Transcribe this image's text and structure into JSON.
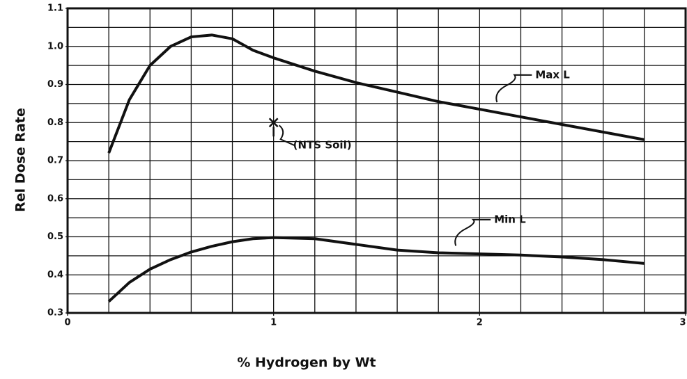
{
  "chart_data": {
    "type": "line",
    "xlabel": "% Hydrogen by Wt",
    "ylabel": "Rel Dose Rate",
    "xlim": [
      0,
      3
    ],
    "ylim": [
      0.3,
      1.1
    ],
    "xticks": [
      0,
      1,
      2,
      3
    ],
    "yticks": [
      0.3,
      0.4,
      0.5,
      0.6,
      0.7,
      0.8,
      0.9,
      {
        "value": 1,
        "label": "1.0"
      },
      1.1
    ],
    "grid": true,
    "xgrid": [
      0.2,
      0.4,
      0.6,
      0.8,
      1,
      1.2,
      1.4,
      1.6,
      1.8,
      2,
      2.2,
      2.4,
      2.6,
      2.8
    ],
    "ygrid": [
      0.35,
      0.4,
      0.45,
      0.5,
      0.55,
      0.6,
      0.65,
      0.7,
      0.75,
      0.8,
      0.85,
      0.9,
      0.95,
      1,
      1.05
    ],
    "x": [
      0.2,
      0.3,
      0.4,
      0.5,
      0.6,
      0.7,
      0.8,
      0.9,
      1.0,
      1.2,
      1.4,
      1.6,
      1.8,
      2.0,
      2.2,
      2.4,
      2.6,
      2.8
    ],
    "series": [
      {
        "name": "Max L",
        "color": "#111111",
        "values": [
          0.72,
          0.86,
          0.95,
          1.0,
          1.025,
          1.03,
          1.02,
          0.99,
          0.97,
          0.935,
          0.905,
          0.88,
          0.855,
          0.835,
          0.815,
          0.795,
          0.775,
          0.755
        ]
      },
      {
        "name": "Min L",
        "color": "#111111",
        "values": [
          0.33,
          0.38,
          0.415,
          0.44,
          0.46,
          0.475,
          0.487,
          0.495,
          0.498,
          0.495,
          0.48,
          0.465,
          0.458,
          0.455,
          0.452,
          0.447,
          0.44,
          0.43
        ]
      }
    ],
    "point": {
      "label": "(NTS Soil)",
      "x": 1.0,
      "y": 0.8
    }
  }
}
